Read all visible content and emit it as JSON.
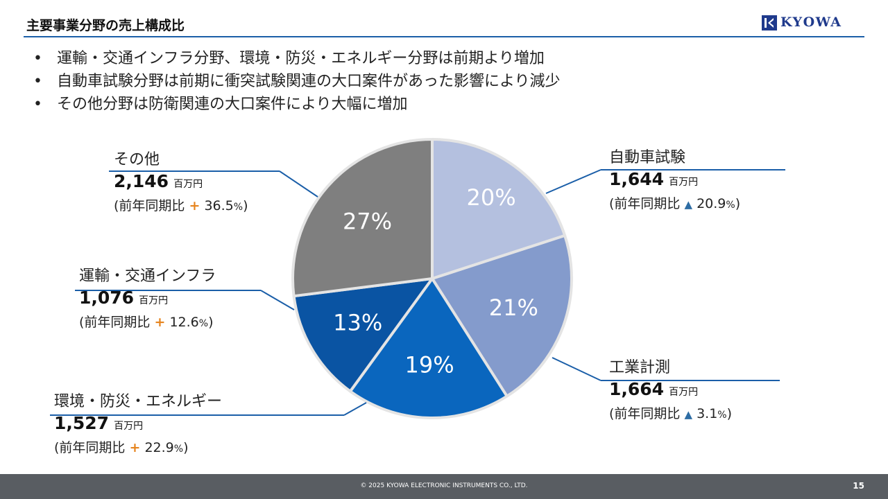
{
  "header": {
    "title": "主要事業分野の売上構成比",
    "logo_text": "KYOWA"
  },
  "bullets": [
    "運輸・交通インフラ分野、環境・防災・エネルギー分野は前期より増加",
    "自動車試験分野は前期に衝突試験関連の大口案件があった影響により減少",
    "その他分野は防衛関連の大口案件により大幅に増加"
  ],
  "chart_data": {
    "type": "pie",
    "start": "12 o'clock, clockwise",
    "slices": [
      {
        "name": "自動車試験",
        "percent": 20,
        "label": "20%",
        "value": 1644,
        "value_text": "1,644",
        "unit": "百万円",
        "yoy_prefix": "(前年同期比",
        "yoy_sign": "▲",
        "yoy_direction": "down",
        "yoy_value": "20.9",
        "yoy_percent": "%",
        "yoy_suffix": ")",
        "color": "#b4c0df"
      },
      {
        "name": "工業計測",
        "percent": 21,
        "label": "21%",
        "value": 1664,
        "value_text": "1,664",
        "unit": "百万円",
        "yoy_prefix": "(前年同期比",
        "yoy_sign": "▲",
        "yoy_direction": "down",
        "yoy_value": "3.1",
        "yoy_percent": "%",
        "yoy_suffix": ")",
        "color": "#849bcc"
      },
      {
        "name": "環境・防災・エネルギー",
        "percent": 19,
        "label": "19%",
        "value": 1527,
        "value_text": "1,527",
        "unit": "百万円",
        "yoy_prefix": "(前年同期比",
        "yoy_sign": "+",
        "yoy_direction": "up",
        "yoy_value": "22.9",
        "yoy_percent": "%",
        "yoy_suffix": ")",
        "color": "#0a66be"
      },
      {
        "name": "運輸・交通インフラ",
        "percent": 13,
        "label": "13%",
        "value": 1076,
        "value_text": "1,076",
        "unit": "百万円",
        "yoy_prefix": "(前年同期比",
        "yoy_sign": "+",
        "yoy_direction": "up",
        "yoy_value": "12.6",
        "yoy_percent": "%",
        "yoy_suffix": ")",
        "color": "#0a54a3"
      },
      {
        "name": "その他",
        "percent": 27,
        "label": "27%",
        "value": 2146,
        "value_text": "2,146",
        "unit": "百万円",
        "yoy_prefix": "(前年同期比",
        "yoy_sign": "+",
        "yoy_direction": "up",
        "yoy_value": "36.5",
        "yoy_percent": "%",
        "yoy_suffix": ")",
        "color": "#7f7f7f"
      }
    ]
  },
  "footer": {
    "copyright": "© 2025 KYOWA ELECTRONIC INSTRUMENTS CO., LTD.",
    "page_number": "15"
  }
}
